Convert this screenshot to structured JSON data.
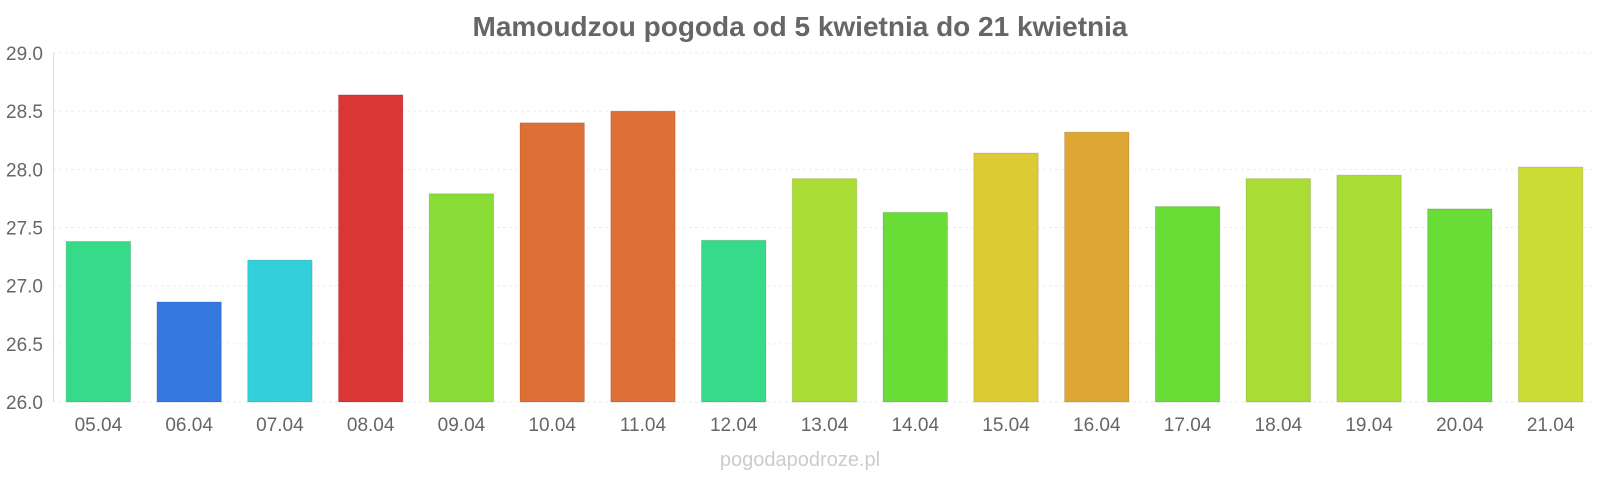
{
  "watermark": "pogodapodroze.pl",
  "chart_data": {
    "type": "bar",
    "title": "Mamoudzou pogoda od 5 kwietnia do 21 kwietnia",
    "xlabel": "",
    "ylabel": "",
    "ylim": [
      26.0,
      29.0
    ],
    "yticks": [
      "26.0",
      "26.5",
      "27.0",
      "27.5",
      "28.0",
      "28.5",
      "29.0"
    ],
    "grid": true,
    "legend": "none",
    "categories": [
      "05.04",
      "06.04",
      "07.04",
      "08.04",
      "09.04",
      "10.04",
      "11.04",
      "12.04",
      "13.04",
      "14.04",
      "15.04",
      "16.04",
      "17.04",
      "18.04",
      "19.04",
      "20.04",
      "21.04"
    ],
    "values": [
      27.38,
      26.86,
      27.22,
      28.64,
      27.79,
      28.4,
      28.5,
      27.39,
      27.92,
      27.63,
      28.14,
      28.32,
      27.68,
      27.92,
      27.95,
      27.66,
      28.02
    ],
    "colors": [
      "#36db8a",
      "#3478e0",
      "#33d0db",
      "#dc3535",
      "#89dc35",
      "#de6f35",
      "#de6f35",
      "#36db8a",
      "#a9dc35",
      "#69dc35",
      "#dccb35",
      "#dea735",
      "#69dc35",
      "#a9dc35",
      "#a9dc35",
      "#69dc35",
      "#ccdc35"
    ]
  }
}
